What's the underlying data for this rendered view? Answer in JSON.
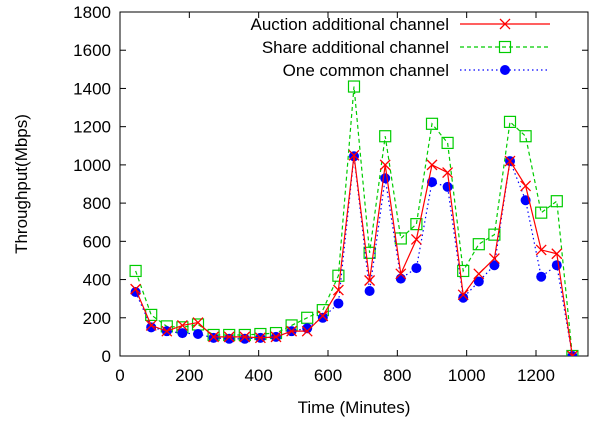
{
  "chart_data": {
    "type": "line",
    "xlabel": "Time (Minutes)",
    "ylabel": "Throughput(Mbps)",
    "xlim": [
      0,
      1350
    ],
    "ylim": [
      0,
      1800
    ],
    "xticks": [
      0,
      200,
      400,
      600,
      800,
      1000,
      1200
    ],
    "yticks": [
      0,
      200,
      400,
      600,
      800,
      1000,
      1200,
      1400,
      1600,
      1800
    ],
    "grid": false,
    "legend_position": "top-right",
    "x": [
      45,
      90,
      135,
      180,
      225,
      270,
      315,
      360,
      405,
      450,
      495,
      540,
      585,
      630,
      675,
      720,
      765,
      810,
      855,
      900,
      945,
      990,
      1035,
      1080,
      1125,
      1170,
      1215,
      1260,
      1305,
      1350
    ],
    "series": [
      {
        "name": "Auction additional channel",
        "color": "#ff0000",
        "marker": "x",
        "dash": "solid",
        "values": [
          350,
          160,
          130,
          160,
          175,
          100,
          100,
          100,
          95,
          100,
          130,
          130,
          210,
          345,
          1050,
          395,
          1000,
          430,
          610,
          1000,
          960,
          320,
          430,
          510,
          1020,
          890,
          555,
          535,
          0,
          0
        ]
      },
      {
        "name": "Share additional channel",
        "color": "#00cc00",
        "marker": "square",
        "dash": "dashed",
        "values": [
          445,
          215,
          155,
          150,
          165,
          110,
          110,
          110,
          115,
          120,
          160,
          200,
          240,
          420,
          1410,
          540,
          1150,
          615,
          690,
          1215,
          1115,
          445,
          585,
          635,
          1225,
          1150,
          750,
          810,
          0,
          0
        ]
      },
      {
        "name": "One common channel",
        "color": "#0000ff",
        "marker": "circle",
        "dash": "dotted",
        "values": [
          335,
          150,
          130,
          120,
          115,
          95,
          90,
          90,
          95,
          100,
          130,
          145,
          200,
          275,
          1045,
          340,
          930,
          405,
          460,
          910,
          885,
          305,
          390,
          475,
          1020,
          815,
          415,
          475,
          0,
          0
        ]
      }
    ]
  }
}
